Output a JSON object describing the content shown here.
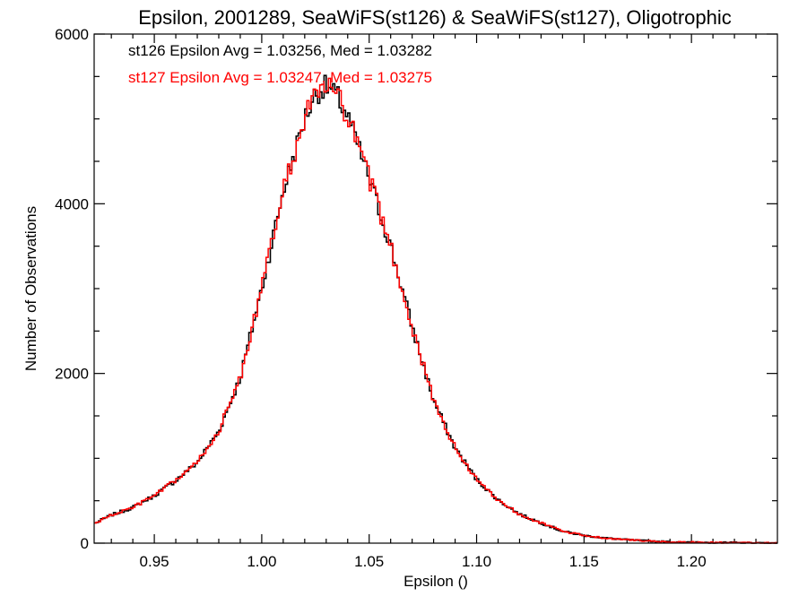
{
  "chart_data": {
    "type": "line",
    "step": true,
    "title": "Epsilon, 2001289, SeaWiFS(st126) & SeaWiFS(st127), Oligotrophic",
    "xlabel": "Epsilon ()",
    "ylabel": "Number of Observations",
    "xlim": [
      0.922,
      1.24
    ],
    "ylim": [
      0,
      6000
    ],
    "x_ticks": [
      0.95,
      1.0,
      1.05,
      1.1,
      1.15,
      1.2
    ],
    "x_tick_labels": [
      "0.95",
      "1.00",
      "1.05",
      "1.10",
      "1.15",
      "1.20"
    ],
    "y_ticks": [
      0,
      2000,
      4000,
      6000
    ],
    "y_tick_labels": [
      "0",
      "2000",
      "4000",
      "6000"
    ],
    "grid": false,
    "annotations": [
      {
        "text": "st126 Epsilon Avg = 1.03256, Med = 1.03282",
        "color": "#000000"
      },
      {
        "text": "st127 Epsilon Avg = 1.03247, Med = 1.03275",
        "color": "#ff0000"
      }
    ],
    "profile_x": [
      0.922,
      0.93,
      0.94,
      0.95,
      0.96,
      0.97,
      0.98,
      0.99,
      1.0,
      1.01,
      1.02,
      1.025,
      1.03,
      1.035,
      1.04,
      1.05,
      1.06,
      1.07,
      1.08,
      1.09,
      1.1,
      1.11,
      1.12,
      1.13,
      1.14,
      1.15,
      1.16,
      1.17,
      1.18,
      1.19,
      1.2,
      1.22,
      1.24
    ],
    "profile_y": [
      230,
      330,
      420,
      560,
      740,
      950,
      1320,
      1950,
      3000,
      4150,
      5000,
      5300,
      5380,
      5270,
      5030,
      4300,
      3500,
      2550,
      1680,
      1120,
      750,
      510,
      340,
      240,
      140,
      90,
      60,
      40,
      25,
      15,
      10,
      5,
      0
    ],
    "series": [
      {
        "color": "#000000",
        "x_start": 0.922,
        "bin_width": 0.001,
        "values": []
      },
      {
        "color": "#ff0000",
        "x_start": 0.922,
        "bin_width": 0.001,
        "values": []
      }
    ]
  }
}
